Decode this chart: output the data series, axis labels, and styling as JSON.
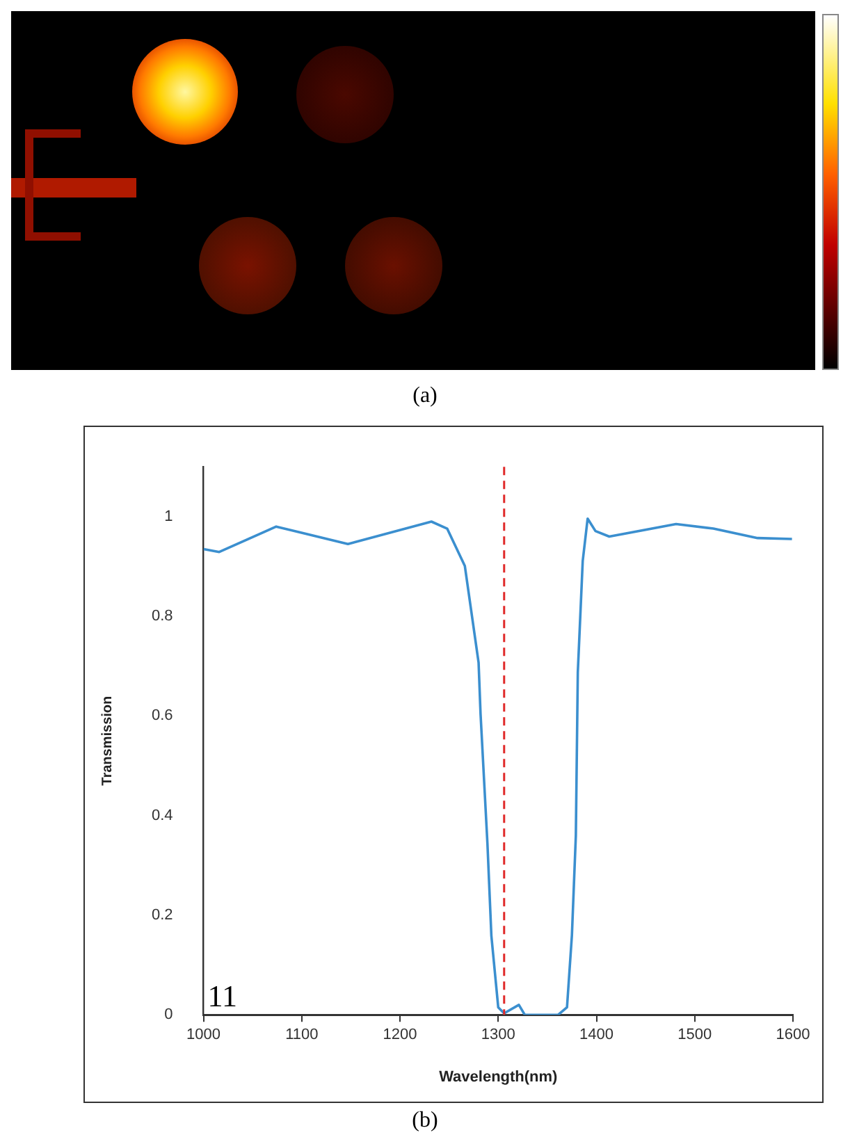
{
  "chart_data": {
    "type": "line",
    "xlabel": "Wavelength(nm)",
    "ylabel": "Transmission",
    "annotations": [
      "(a)",
      "(b)",
      "11"
    ],
    "x": [
      1000,
      1016,
      1074,
      1147,
      1232,
      1248,
      1266,
      1280,
      1282,
      1289,
      1293,
      1300,
      1306,
      1321,
      1327,
      1361,
      1370,
      1375,
      1379,
      1381,
      1386,
      1391,
      1399,
      1413,
      1481,
      1519,
      1564,
      1599
    ],
    "series": [
      {
        "color": "#3b8fcf",
        "values": [
          0.935,
          0.929,
          0.98,
          0.945,
          0.99,
          0.976,
          0.901,
          0.707,
          0.604,
          0.344,
          0.159,
          0.015,
          0.003,
          0.02,
          0,
          0,
          0.015,
          0.16,
          0.36,
          0.688,
          0.911,
          0.996,
          0.971,
          0.96,
          0.985,
          0.976,
          0.957,
          0.955
        ]
      }
    ],
    "xlim": [
      1000,
      1600
    ],
    "xticks": [
      1000,
      1100,
      1200,
      1300,
      1400,
      1500,
      1600
    ],
    "ylim": [
      0,
      1.1
    ],
    "yticks": [
      0,
      0.2,
      0.4,
      0.6,
      0.8,
      1
    ],
    "ref_lines": [
      {
        "axis": "x",
        "value": 1306,
        "color": "#e02b2b",
        "line_style": "dashed"
      }
    ],
    "grid": false,
    "legend": false
  }
}
